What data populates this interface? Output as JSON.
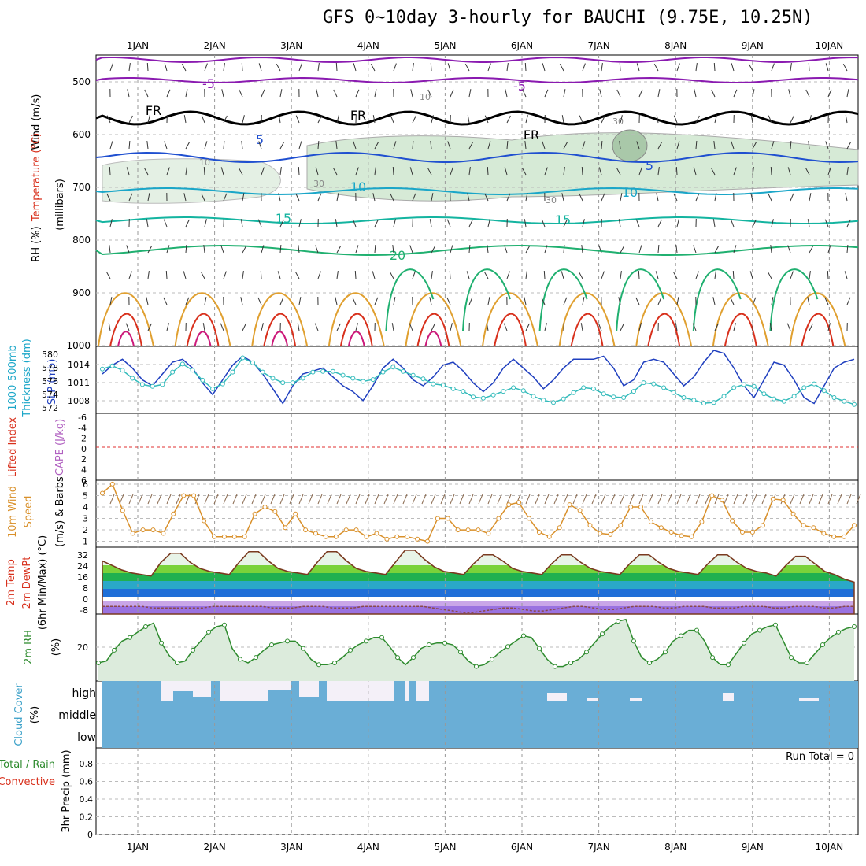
{
  "title": "GFS 0~10day 3-hourly for BAUCHI (9.75E, 10.25N)",
  "dates": [
    "1JAN",
    "2JAN",
    "3JAN",
    "4JAN",
    "5JAN",
    "6JAN",
    "7JAN",
    "8JAN",
    "9JAN",
    "10JAN"
  ],
  "colors": {
    "grid": "#999999",
    "slp": "#1f3fbf",
    "thickness": "#33bbbb",
    "wind": "#d9902a",
    "rh": "#2e8b2e",
    "cloud": "#6aaed6",
    "freezing": "#000000",
    "purple": "#8a1ab0",
    "blue": "#1f4fd0",
    "cyan": "#1aa6c8",
    "teal": "#14b4a0",
    "green": "#20b070",
    "orange": "#e0a030",
    "red": "#d8301c",
    "magenta": "#cc1a7a"
  },
  "panels": {
    "upper": {
      "ylabel_parts": [
        "Wind (m/s)",
        "Temperature (°C)",
        "RH (%)",
        "(millibars)"
      ],
      "ticks": [
        "500",
        "600",
        "700",
        "800",
        "900",
        "1000"
      ],
      "contour_labels": [
        "-5",
        "-5",
        "FR",
        "FR",
        "FR",
        "5",
        "5",
        "10",
        "10",
        "15",
        "15",
        "20",
        "10",
        "10",
        "30",
        "30",
        "30"
      ]
    },
    "pressure": {
      "ylabel_parts": [
        "1000-500mb",
        "Thickness (dm)",
        "SLP (mb)"
      ],
      "ticks_left": [
        "580",
        "578",
        "576",
        "574",
        "572"
      ],
      "ticks_right": [
        "1014",
        "1011",
        "1008"
      ]
    },
    "cape": {
      "ylabel_parts": [
        "Lifted Index",
        "CAPE (J/kg)"
      ],
      "ticks": [
        "-6",
        "-4",
        "-2",
        "0",
        "2",
        "4",
        "6"
      ]
    },
    "wind10m": {
      "ylabel_parts": [
        "10m Wind",
        "Speed",
        "(m/s) & Barbs"
      ],
      "ticks": [
        "6",
        "5",
        "4",
        "3",
        "2",
        "1"
      ]
    },
    "temp": {
      "ylabel_parts": [
        "2m Temp",
        "2m DewPt",
        "(6hr Min/Max) (°C)"
      ],
      "ticks": [
        "32",
        "24",
        "16",
        "8",
        "0",
        "-8"
      ]
    },
    "rh2m": {
      "ylabel_parts": [
        "2m RH",
        "(%)"
      ],
      "ticks": [
        "20"
      ]
    },
    "cloud": {
      "ylabel_parts": [
        "Cloud Cover",
        "(%)"
      ],
      "levels": [
        "high",
        "middle",
        "low"
      ]
    },
    "precip": {
      "ylabel_parts": [
        "Total / Rain",
        "Convective",
        "3hr Precip (mm)"
      ],
      "ticks": [
        "0.8",
        "0.6",
        "0.4",
        "0.2",
        "0"
      ],
      "run_total": "Run Total = 0"
    }
  },
  "chart_data": [
    {
      "type": "line",
      "name": "SLP (mb)",
      "x": [
        "1JAN 00",
        "1JAN 03",
        "1JAN 06",
        "1JAN 09",
        "1JAN 12",
        "1JAN 15",
        "1JAN 18",
        "1JAN 21",
        "2JAN 00",
        "2JAN 03",
        "2JAN 06",
        "2JAN 09",
        "2JAN 12",
        "2JAN 15",
        "2JAN 18",
        "2JAN 21",
        "3JAN 00",
        "3JAN 03",
        "3JAN 06",
        "3JAN 09",
        "3JAN 12",
        "3JAN 15",
        "3JAN 18",
        "3JAN 21",
        "4JAN 00",
        "4JAN 03",
        "4JAN 06",
        "4JAN 09",
        "4JAN 12",
        "4JAN 15",
        "4JAN 18",
        "4JAN 21",
        "5JAN 00",
        "5JAN 03",
        "5JAN 06",
        "5JAN 09",
        "5JAN 12",
        "5JAN 15",
        "5JAN 18",
        "5JAN 21",
        "6JAN 00",
        "6JAN 03",
        "6JAN 06",
        "6JAN 09",
        "6JAN 12",
        "6JAN 15",
        "6JAN 18",
        "6JAN 21",
        "7JAN 00",
        "7JAN 03",
        "7JAN 06",
        "7JAN 09",
        "7JAN 12",
        "7JAN 15",
        "7JAN 18",
        "7JAN 21",
        "8JAN 00",
        "8JAN 03",
        "8JAN 06",
        "8JAN 09",
        "8JAN 12",
        "8JAN 15",
        "8JAN 18",
        "8JAN 21",
        "9JAN 00",
        "9JAN 03",
        "9JAN 06",
        "9JAN 09",
        "9JAN 12",
        "9JAN 15",
        "9JAN 18",
        "9JAN 21",
        "10JAN 00",
        "10JAN 03",
        "10JAN 06",
        "10JAN 09"
      ],
      "values": [
        1012,
        1013.5,
        1014.5,
        1013,
        1011,
        1010,
        1012,
        1014,
        1014.5,
        1013,
        1010.5,
        1008.5,
        1011,
        1013.5,
        1015,
        1014,
        1012,
        1009.5,
        1007,
        1010,
        1012,
        1012.5,
        1013,
        1011.5,
        1010,
        1009,
        1007.5,
        1010,
        1013,
        1014.5,
        1013,
        1011,
        1010,
        1011.5,
        1013.5,
        1014,
        1012.5,
        1010.5,
        1009,
        1010.5,
        1013,
        1014.5,
        1013,
        1011.5,
        1009.5,
        1011,
        1013,
        1014.5,
        1014.5,
        1014.5,
        1015,
        1013,
        1010,
        1011,
        1014,
        1014.5,
        1014,
        1012,
        1010,
        1011.5,
        1014,
        1016,
        1015.5,
        1013,
        1010,
        1008,
        1011,
        1014,
        1013.5,
        1011,
        1008,
        1007,
        1010,
        1013,
        1014,
        1014.5
      ],
      "ylim": [
        1006,
        1016
      ]
    },
    {
      "type": "line",
      "name": "1000-500mb Thickness (dm)",
      "values": [
        578,
        578.5,
        577.8,
        576.5,
        575.5,
        575.2,
        575.5,
        577.5,
        578.8,
        577.8,
        576.2,
        574.8,
        575.6,
        577.5,
        579.8,
        579,
        577.5,
        576.5,
        575.8,
        575.8,
        576.5,
        577.5,
        577.6,
        577.6,
        577,
        576.5,
        576,
        576.3,
        577.5,
        578.3,
        577.6,
        577,
        576.4,
        575.6,
        575.4,
        574.8,
        574.4,
        573.5,
        573.3,
        573.8,
        574.4,
        575,
        574.5,
        573.6,
        573,
        572.6,
        573.2,
        574.2,
        575,
        574.8,
        574,
        573.5,
        573.4,
        574.4,
        575.8,
        575.6,
        575,
        574.2,
        573.4,
        573,
        572.5,
        572.6,
        573.6,
        575,
        575.5,
        575.2,
        574,
        573.2,
        572.8,
        573.6,
        575,
        575.6,
        574.5,
        573.4,
        572.8,
        572.3
      ],
      "ylim": [
        571.5,
        581
      ]
    },
    {
      "type": "line",
      "name": "10m Wind Speed (m/s)",
      "values": [
        5,
        5.8,
        3.5,
        1.5,
        1.8,
        1.8,
        1.5,
        3.2,
        4.8,
        4.8,
        2.6,
        1.2,
        1.2,
        1.2,
        1.2,
        3.2,
        3.8,
        3.4,
        2,
        3.2,
        1.8,
        1.5,
        1.2,
        1.2,
        1.8,
        1.8,
        1.2,
        1.5,
        1,
        1.2,
        1.2,
        1,
        0.8,
        2.8,
        2.8,
        1.8,
        1.8,
        1.8,
        1.5,
        2.8,
        4,
        4.2,
        2.8,
        1.6,
        1.2,
        2,
        4,
        3.5,
        2.2,
        1.5,
        1.4,
        2.2,
        3.8,
        3.8,
        2.5,
        2,
        1.6,
        1.3,
        1.2,
        2.5,
        4.8,
        4.4,
        2.6,
        1.6,
        1.6,
        2.2,
        4.5,
        4.4,
        3.2,
        2.2,
        2,
        1.5,
        1.2,
        1.2,
        2.2
      ],
      "ylim": [
        0.5,
        6
      ]
    },
    {
      "type": "area",
      "name": "2m Temp (°C)",
      "values": [
        27,
        24,
        21,
        19,
        18,
        17,
        26,
        32,
        32,
        26,
        22,
        20,
        19,
        18,
        26,
        33,
        33,
        27,
        22,
        20,
        19,
        18,
        26,
        33,
        33,
        27,
        22,
        20,
        19,
        18,
        26,
        34,
        34,
        28,
        23,
        20,
        19,
        18,
        25,
        31,
        31,
        27,
        22,
        20,
        19,
        18,
        25,
        31,
        31,
        26,
        22,
        20,
        19,
        18,
        25,
        31,
        31,
        26,
        22,
        20,
        19,
        18,
        25,
        31,
        31,
        26,
        22,
        20,
        19,
        17,
        24,
        30,
        30,
        25,
        20,
        18,
        15,
        13
      ],
      "ylim": [
        -8,
        36
      ]
    },
    {
      "type": "line",
      "name": "2m DewPt (°C)",
      "values": [
        -3,
        -3,
        -3,
        -3,
        -3,
        -4,
        -4,
        -4,
        -4,
        -4,
        -4,
        -3,
        -3,
        -3,
        -3,
        -3,
        -3,
        -4,
        -4,
        -4,
        -3,
        -3,
        -3,
        -4,
        -4,
        -4,
        -3,
        -3,
        -3,
        -3,
        -3,
        -3,
        -3,
        -4,
        -5,
        -6,
        -7,
        -7,
        -6,
        -5,
        -4,
        -4,
        -5,
        -6,
        -6,
        -5,
        -4,
        -3,
        -3,
        -4,
        -5,
        -5,
        -4,
        -3,
        -3,
        -3,
        -4,
        -4,
        -3,
        -3,
        -3,
        -4,
        -4,
        -4,
        -3,
        -3,
        -3,
        -4,
        -4,
        -3,
        -3,
        -3,
        -4,
        -4,
        -3,
        -3
      ]
    },
    {
      "type": "area",
      "name": "2m RH (%)",
      "values": [
        10,
        11,
        17,
        22,
        24,
        27,
        30,
        32,
        21,
        14,
        10,
        11,
        17,
        22,
        27,
        30,
        31,
        18,
        12,
        10,
        13,
        17,
        20,
        21,
        22,
        22,
        18,
        12,
        9,
        9,
        10,
        13,
        17,
        20,
        22,
        24,
        24,
        19,
        13,
        9,
        13,
        18,
        20,
        21,
        21,
        20,
        16,
        11,
        8,
        9,
        12,
        16,
        19,
        22,
        25,
        24,
        18,
        12,
        8,
        8,
        10,
        12,
        16,
        21,
        26,
        30,
        33,
        34,
        22,
        13,
        10,
        12,
        16,
        22,
        25,
        28,
        28,
        22,
        13,
        9,
        9,
        15,
        21,
        26,
        28,
        30,
        31,
        22,
        13,
        10,
        10,
        15,
        20,
        24,
        27,
        29,
        30
      ]
    },
    {
      "type": "bar",
      "name": "Cloud Cover high (%)",
      "values": []
    },
    {
      "type": "bar",
      "name": "3hr Precip (mm)",
      "values": [],
      "ylim": [
        0,
        0.9
      ]
    }
  ]
}
